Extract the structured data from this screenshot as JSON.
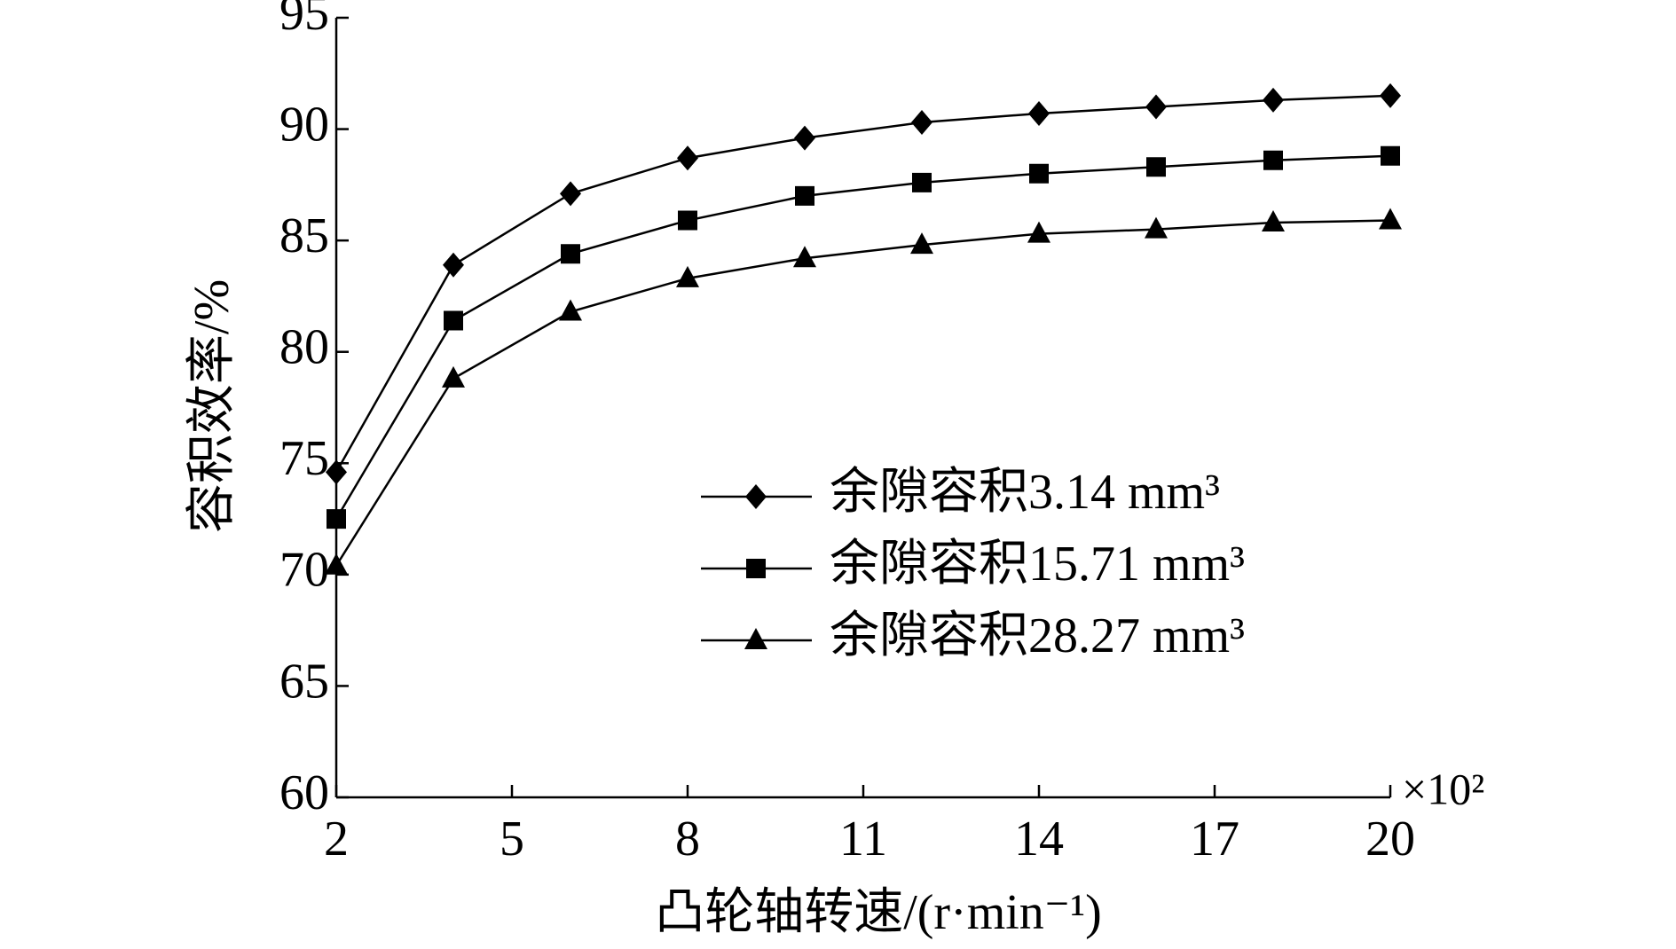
{
  "chart_data": {
    "type": "line",
    "x_label": "凸轮轴转速/(r·min⁻¹)",
    "x_multiplier": "×10²",
    "y_label": "容积效率/%",
    "x": [
      2,
      4,
      6,
      8,
      10,
      12,
      14,
      16,
      18,
      20
    ],
    "series": [
      {
        "name": "余隙容积3.14 mm³",
        "color": "#000000",
        "marker": "diamond",
        "values": [
          74.6,
          83.9,
          87.1,
          88.7,
          89.6,
          90.3,
          90.7,
          91.0,
          91.3,
          91.5
        ]
      },
      {
        "name": "余隙容积15.71 mm³",
        "color": "#000000",
        "marker": "square",
        "values": [
          72.5,
          81.4,
          84.4,
          85.9,
          87.0,
          87.6,
          88.0,
          88.3,
          88.6,
          88.8
        ]
      },
      {
        "name": "余隙容积28.27 mm³",
        "color": "#000000",
        "marker": "triangle",
        "values": [
          70.4,
          78.8,
          81.8,
          83.3,
          84.2,
          84.8,
          85.3,
          85.5,
          85.8,
          85.9
        ]
      }
    ],
    "xlim": [
      2,
      20
    ],
    "xticks": [
      2,
      5,
      8,
      11,
      14,
      17,
      20
    ],
    "ylim": [
      60,
      95
    ],
    "yticks": [
      60,
      65,
      70,
      75,
      80,
      85,
      90,
      95
    ],
    "grid": false
  }
}
